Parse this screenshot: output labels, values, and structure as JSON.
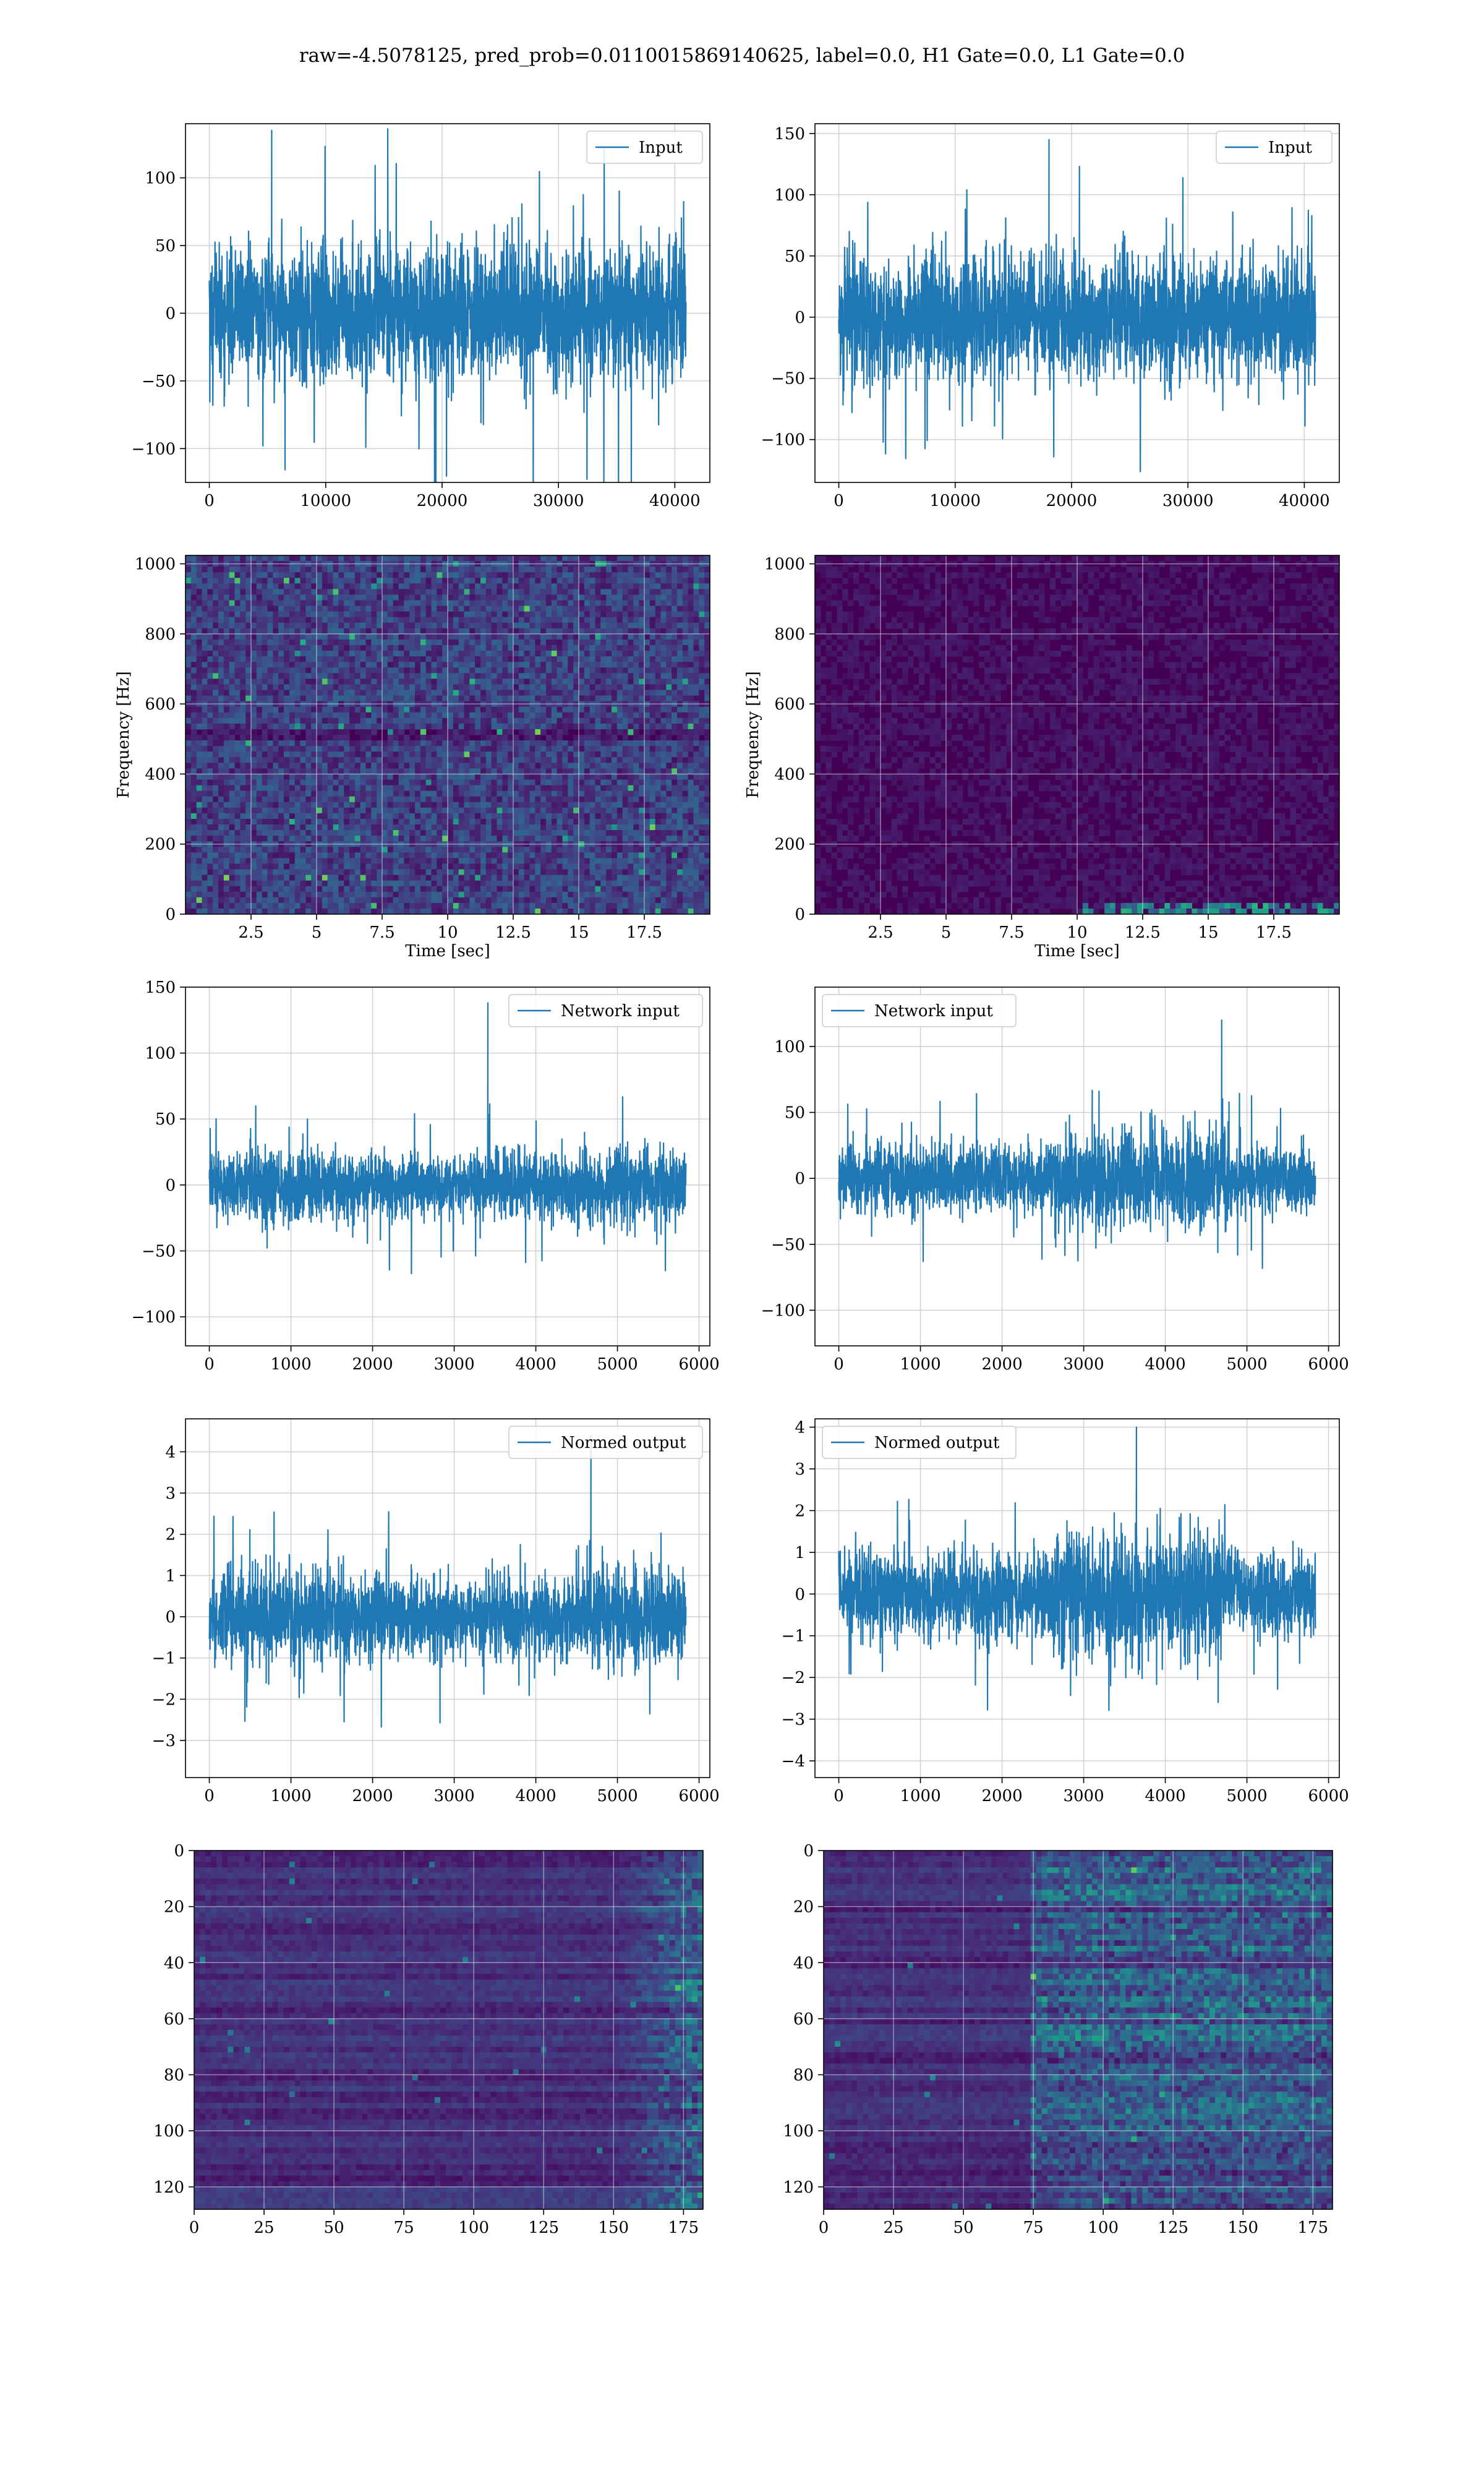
{
  "figure": {
    "suptitle": "raw=-4.5078125, pred_prob=0.0110015869140625, label=0.0, H1 Gate=0.0, L1 Gate=0.0"
  },
  "colors": {
    "line": "#1f77b4",
    "grid": "#d0d0d0",
    "viridis_low": "#440154",
    "viridis_mid": "#21908d",
    "viridis_high": "#fde725"
  },
  "chart_data": [
    {
      "id": "input-h1",
      "type": "line",
      "title": "",
      "xlabel": "",
      "ylabel": "",
      "series": [
        {
          "name": "Input",
          "n": 40960,
          "amplitude": 50,
          "peak": 135
        }
      ],
      "xlim": [
        -2048,
        43008
      ],
      "ylim": [
        -125,
        140
      ],
      "xticks": [
        0,
        10000,
        20000,
        30000,
        40000
      ],
      "yticks": [
        -100,
        -50,
        0,
        50,
        100
      ],
      "grid": true,
      "legend": "upper right"
    },
    {
      "id": "input-l1",
      "type": "line",
      "title": "",
      "xlabel": "",
      "ylabel": "",
      "series": [
        {
          "name": "Input",
          "n": 40960,
          "amplitude": 50,
          "peak": 145
        }
      ],
      "xlim": [
        -2048,
        43008
      ],
      "ylim": [
        -135,
        158
      ],
      "xticks": [
        0,
        10000,
        20000,
        30000,
        40000
      ],
      "yticks": [
        -100,
        -50,
        0,
        50,
        100,
        150
      ],
      "grid": true,
      "legend": "upper right"
    },
    {
      "id": "spectrogram-h1",
      "type": "heatmap",
      "title": "",
      "xlabel": "Time [sec]",
      "ylabel": "Frequency [Hz]",
      "xlim": [
        0,
        20
      ],
      "ylim": [
        0,
        1024
      ],
      "xticks": [
        2.5,
        5.0,
        7.5,
        10.0,
        12.5,
        15.0,
        17.5
      ],
      "yticks": [
        0,
        200,
        400,
        600,
        800,
        1000
      ],
      "colormap": "viridis",
      "grid": true,
      "texture": "uniform speckle"
    },
    {
      "id": "spectrogram-l1",
      "type": "heatmap",
      "title": "",
      "xlabel": "Time [sec]",
      "ylabel": "Frequency [Hz]",
      "xlim": [
        0,
        20
      ],
      "ylim": [
        0,
        1024
      ],
      "xticks": [
        2.5,
        5.0,
        7.5,
        10.0,
        12.5,
        15.0,
        17.5
      ],
      "yticks": [
        0,
        200,
        400,
        600,
        800,
        1000
      ],
      "colormap": "viridis",
      "grid": true,
      "texture": "dark, bright low-frequency band after 10 s"
    },
    {
      "id": "network-input-h1",
      "type": "line",
      "title": "",
      "xlabel": "",
      "ylabel": "",
      "series": [
        {
          "name": "Network input",
          "n": 5840,
          "amplitude": 25,
          "peak": 138
        }
      ],
      "xlim": [
        -292,
        6132
      ],
      "ylim": [
        -122,
        150
      ],
      "xticks": [
        0,
        1000,
        2000,
        3000,
        4000,
        5000,
        6000
      ],
      "yticks": [
        -100,
        -50,
        0,
        50,
        100,
        150
      ],
      "grid": true,
      "legend": "upper right"
    },
    {
      "id": "network-input-l1",
      "type": "line",
      "title": "",
      "xlabel": "",
      "ylabel": "",
      "series": [
        {
          "name": "Network input",
          "n": 5840,
          "amplitude": 25,
          "peak": 120
        }
      ],
      "xlim": [
        -292,
        6132
      ],
      "ylim": [
        -127,
        145
      ],
      "xticks": [
        0,
        1000,
        2000,
        3000,
        4000,
        5000,
        6000
      ],
      "yticks": [
        -100,
        -50,
        0,
        50,
        100
      ],
      "grid": true,
      "legend": "upper left"
    },
    {
      "id": "normed-output-h1",
      "type": "line",
      "title": "",
      "xlabel": "",
      "ylabel": "",
      "series": [
        {
          "name": "Normed output",
          "n": 5840,
          "amplitude": 1,
          "peak": 4.4
        }
      ],
      "xlim": [
        -292,
        6132
      ],
      "ylim": [
        -3.9,
        4.8
      ],
      "xticks": [
        0,
        1000,
        2000,
        3000,
        4000,
        5000,
        6000
      ],
      "yticks": [
        -3,
        -2,
        -1,
        0,
        1,
        2,
        3,
        4
      ],
      "grid": true,
      "legend": "upper right"
    },
    {
      "id": "normed-output-l1",
      "type": "line",
      "title": "",
      "xlabel": "",
      "ylabel": "",
      "series": [
        {
          "name": "Normed output",
          "n": 5840,
          "amplitude": 1,
          "peak": 4.0
        }
      ],
      "xlim": [
        -292,
        6132
      ],
      "ylim": [
        -4.4,
        4.2
      ],
      "xticks": [
        0,
        1000,
        2000,
        3000,
        4000,
        5000,
        6000
      ],
      "yticks": [
        -4,
        -3,
        -2,
        -1,
        0,
        1,
        2,
        3,
        4
      ],
      "grid": true,
      "legend": "upper left"
    },
    {
      "id": "feature-map-h1",
      "type": "heatmap",
      "title": "",
      "xlabel": "",
      "ylabel": "",
      "xlim": [
        0,
        182
      ],
      "ylim": [
        128,
        0
      ],
      "xticks": [
        0,
        25,
        50,
        75,
        100,
        125,
        150,
        175
      ],
      "yticks": [
        0,
        20,
        40,
        60,
        80,
        100,
        120
      ],
      "colormap": "viridis",
      "grid": true,
      "texture": "horizontal streaks, bright at right edge"
    },
    {
      "id": "feature-map-l1",
      "type": "heatmap",
      "title": "",
      "xlabel": "",
      "ylabel": "",
      "xlim": [
        0,
        182
      ],
      "ylim": [
        128,
        0
      ],
      "xticks": [
        0,
        25,
        50,
        75,
        100,
        125,
        150,
        175
      ],
      "yticks": [
        0,
        20,
        40,
        60,
        80,
        100,
        120
      ],
      "colormap": "viridis",
      "grid": true,
      "texture": "horizontal streaks, bright from 75 onward"
    }
  ]
}
